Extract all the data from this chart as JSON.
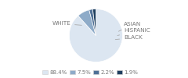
{
  "labels": [
    "WHITE",
    "HISPANIC",
    "ASIAN",
    "BLACK"
  ],
  "values": [
    88.4,
    7.5,
    2.2,
    1.9
  ],
  "colors": [
    "#dce6f1",
    "#8eabc8",
    "#4f7096",
    "#1f3f5f"
  ],
  "legend_labels": [
    "88.4%",
    "7.5%",
    "2.2%",
    "1.9%"
  ],
  "startangle": 90,
  "bg_color": "#ffffff",
  "text_color": "#777777"
}
